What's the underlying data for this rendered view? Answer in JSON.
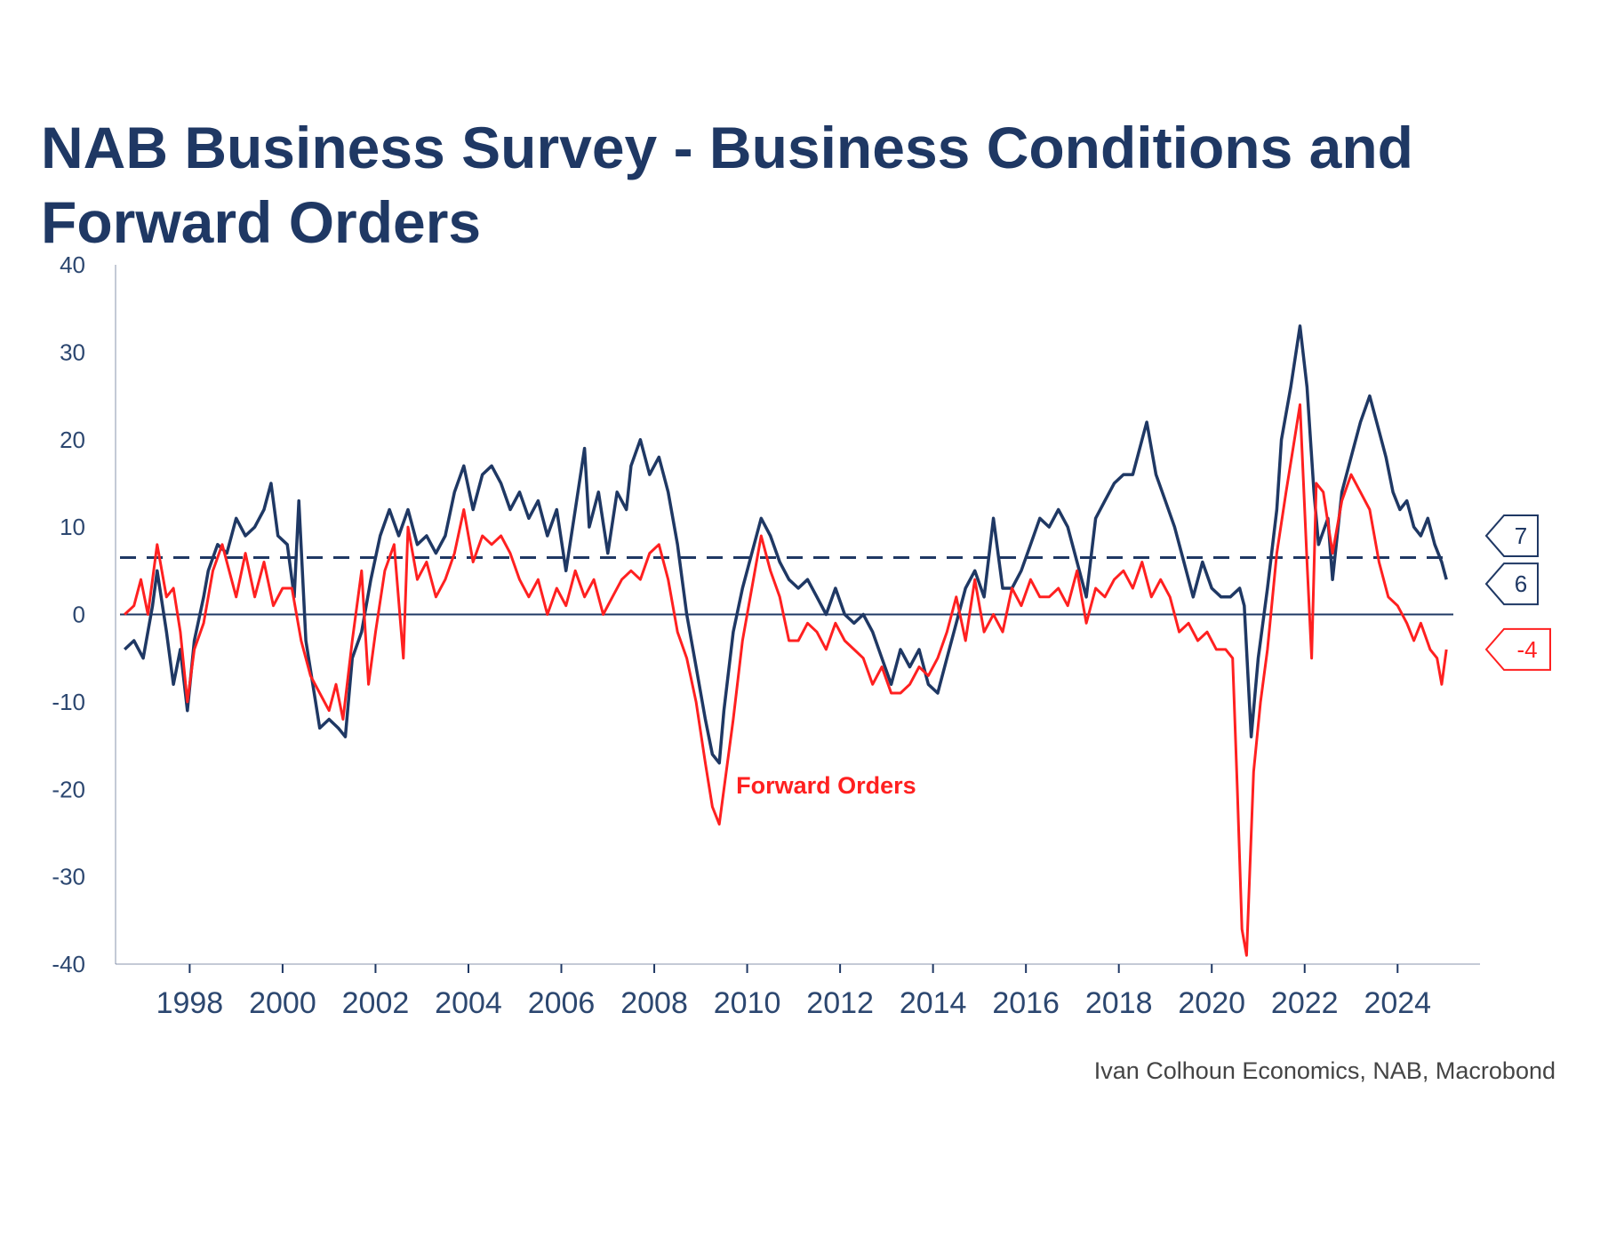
{
  "chart_data": {
    "type": "line",
    "title": "NAB Business Survey - Business Conditions and Forward Orders",
    "source": "Ivan Colhoun Economics, NAB, Macrobond",
    "ylim": [
      -40,
      40
    ],
    "xlim": [
      1997.0,
      2024.75
    ],
    "y_ticks": [
      40,
      30,
      20,
      10,
      0,
      -10,
      -20,
      -30,
      -40
    ],
    "x_ticks": [
      "1998",
      "2000",
      "2002",
      "2004",
      "2006",
      "2008",
      "2010",
      "2012",
      "2014",
      "2016",
      "2018",
      "2020",
      "2022",
      "2024"
    ],
    "colors": {
      "conditions": "#1f3864",
      "forward_orders": "#ff2020",
      "axis": "#1f3864",
      "text": "#2c4770"
    },
    "annotation": {
      "text": "Forward Orders",
      "x": 2012.2,
      "y": -20.5,
      "color": "#ff2020"
    },
    "reference_line": {
      "y": 6.5,
      "style": "dashed",
      "color": "#1f3864"
    },
    "end_labels": [
      {
        "text": "7",
        "y": 9,
        "color": "#1f3864"
      },
      {
        "text": "6",
        "y": 3.5,
        "color": "#1f3864"
      },
      {
        "text": "-4",
        "y": -4,
        "color": "#ff2020"
      }
    ],
    "series": [
      {
        "key": "conditions",
        "points": [
          [
            1997.1,
            -4
          ],
          [
            1997.3,
            -3
          ],
          [
            1997.5,
            -5
          ],
          [
            1997.7,
            1
          ],
          [
            1997.8,
            5
          ],
          [
            1998.0,
            -2
          ],
          [
            1998.15,
            -8
          ],
          [
            1998.3,
            -4
          ],
          [
            1998.45,
            -11
          ],
          [
            1998.6,
            -3
          ],
          [
            1998.8,
            2
          ],
          [
            1998.9,
            5
          ],
          [
            1999.1,
            8
          ],
          [
            1999.3,
            7
          ],
          [
            1999.5,
            11
          ],
          [
            1999.7,
            9
          ],
          [
            1999.9,
            10
          ],
          [
            2000.1,
            12
          ],
          [
            2000.25,
            15
          ],
          [
            2000.4,
            9
          ],
          [
            2000.6,
            8
          ],
          [
            2000.75,
            2
          ],
          [
            2000.85,
            13
          ],
          [
            2001.0,
            -3
          ],
          [
            2001.15,
            -8
          ],
          [
            2001.3,
            -13
          ],
          [
            2001.5,
            -12
          ],
          [
            2001.7,
            -13
          ],
          [
            2001.85,
            -14
          ],
          [
            2002.0,
            -5
          ],
          [
            2002.2,
            -2
          ],
          [
            2002.4,
            4
          ],
          [
            2002.6,
            9
          ],
          [
            2002.8,
            12
          ],
          [
            2003.0,
            9
          ],
          [
            2003.2,
            12
          ],
          [
            2003.4,
            8
          ],
          [
            2003.6,
            9
          ],
          [
            2003.8,
            7
          ],
          [
            2004.0,
            9
          ],
          [
            2004.2,
            14
          ],
          [
            2004.4,
            17
          ],
          [
            2004.6,
            12
          ],
          [
            2004.8,
            16
          ],
          [
            2005.0,
            17
          ],
          [
            2005.2,
            15
          ],
          [
            2005.4,
            12
          ],
          [
            2005.6,
            14
          ],
          [
            2005.8,
            11
          ],
          [
            2006.0,
            13
          ],
          [
            2006.2,
            9
          ],
          [
            2006.4,
            12
          ],
          [
            2006.6,
            5
          ],
          [
            2006.8,
            12
          ],
          [
            2007.0,
            19
          ],
          [
            2007.1,
            10
          ],
          [
            2007.3,
            14
          ],
          [
            2007.5,
            7
          ],
          [
            2007.7,
            14
          ],
          [
            2007.9,
            12
          ],
          [
            2008.0,
            17
          ],
          [
            2008.2,
            20
          ],
          [
            2008.4,
            16
          ],
          [
            2008.6,
            18
          ],
          [
            2008.8,
            14
          ],
          [
            2009.0,
            8
          ],
          [
            2009.2,
            0
          ],
          [
            2009.4,
            -6
          ],
          [
            2009.6,
            -12
          ],
          [
            2009.75,
            -16
          ],
          [
            2009.9,
            -17
          ],
          [
            2010.0,
            -11
          ],
          [
            2010.2,
            -2
          ],
          [
            2010.4,
            3
          ],
          [
            2010.6,
            7
          ],
          [
            2010.8,
            11
          ],
          [
            2011.0,
            9
          ],
          [
            2011.2,
            6
          ],
          [
            2011.4,
            4
          ],
          [
            2011.6,
            3
          ],
          [
            2011.8,
            4
          ],
          [
            2012.0,
            2
          ],
          [
            2012.2,
            0
          ],
          [
            2012.4,
            3
          ],
          [
            2012.6,
            0
          ],
          [
            2012.8,
            -1
          ],
          [
            2013.0,
            0
          ],
          [
            2013.2,
            -2
          ],
          [
            2013.4,
            -5
          ],
          [
            2013.6,
            -8
          ],
          [
            2013.8,
            -4
          ],
          [
            2014.0,
            -6
          ],
          [
            2014.2,
            -4
          ],
          [
            2014.4,
            -8
          ],
          [
            2014.6,
            -9
          ],
          [
            2014.8,
            -5
          ],
          [
            2015.0,
            -1
          ],
          [
            2015.2,
            3
          ],
          [
            2015.4,
            5
          ],
          [
            2015.6,
            2
          ],
          [
            2015.8,
            11
          ],
          [
            2016.0,
            3
          ],
          [
            2016.2,
            3
          ],
          [
            2016.4,
            5
          ],
          [
            2016.6,
            8
          ],
          [
            2016.8,
            11
          ],
          [
            2017.0,
            10
          ],
          [
            2017.2,
            12
          ],
          [
            2017.4,
            10
          ],
          [
            2017.6,
            6
          ],
          [
            2017.8,
            2
          ],
          [
            2018.0,
            11
          ],
          [
            2018.2,
            13
          ],
          [
            2018.4,
            15
          ],
          [
            2018.6,
            16
          ],
          [
            2018.8,
            16
          ],
          [
            2019.0,
            20
          ],
          [
            2019.1,
            22
          ],
          [
            2019.3,
            16
          ],
          [
            2019.5,
            13
          ],
          [
            2019.7,
            10
          ],
          [
            2019.9,
            6
          ],
          [
            2020.1,
            2
          ],
          [
            2020.3,
            6
          ],
          [
            2020.5,
            3
          ],
          [
            2020.7,
            2
          ],
          [
            2020.9,
            2
          ],
          [
            2021.1,
            3
          ],
          [
            2021.2,
            1
          ],
          [
            2021.35,
            -14
          ],
          [
            2021.5,
            -5
          ],
          [
            2021.7,
            3
          ],
          [
            2021.9,
            12
          ],
          [
            2022.0,
            20
          ],
          [
            2022.2,
            26
          ],
          [
            2022.4,
            33
          ],
          [
            2022.55,
            26
          ],
          [
            2022.7,
            14
          ],
          [
            2022.8,
            8
          ],
          [
            2023.0,
            11
          ],
          [
            2023.1,
            4
          ],
          [
            2023.3,
            14
          ],
          [
            2023.5,
            18
          ],
          [
            2023.7,
            22
          ],
          [
            2023.9,
            25
          ],
          [
            2024.1,
            21
          ],
          [
            2024.25,
            18
          ],
          [
            2024.4,
            14
          ],
          [
            2024.55,
            12
          ],
          [
            2024.7,
            13
          ],
          [
            2024.85,
            10
          ],
          [
            2025.0,
            9
          ],
          [
            2025.15,
            11
          ],
          [
            2025.3,
            8
          ],
          [
            2025.45,
            6
          ],
          [
            2025.55,
            4
          ]
        ]
      },
      {
        "key": "forward_orders",
        "points": [
          [
            1997.1,
            0
          ],
          [
            1997.3,
            1
          ],
          [
            1997.45,
            4
          ],
          [
            1997.6,
            0
          ],
          [
            1997.8,
            8
          ],
          [
            1998.0,
            2
          ],
          [
            1998.15,
            3
          ],
          [
            1998.3,
            -2
          ],
          [
            1998.45,
            -10
          ],
          [
            1998.6,
            -4
          ],
          [
            1998.8,
            -1
          ],
          [
            1999.0,
            5
          ],
          [
            1999.2,
            8
          ],
          [
            1999.35,
            5
          ],
          [
            1999.5,
            2
          ],
          [
            1999.7,
            7
          ],
          [
            1999.9,
            2
          ],
          [
            2000.1,
            6
          ],
          [
            2000.3,
            1
          ],
          [
            2000.5,
            3
          ],
          [
            2000.7,
            3
          ],
          [
            2000.9,
            -3
          ],
          [
            2001.1,
            -7
          ],
          [
            2001.3,
            -9
          ],
          [
            2001.5,
            -11
          ],
          [
            2001.65,
            -8
          ],
          [
            2001.8,
            -12
          ],
          [
            2002.0,
            -3
          ],
          [
            2002.2,
            5
          ],
          [
            2002.35,
            -8
          ],
          [
            2002.5,
            -2
          ],
          [
            2002.7,
            5
          ],
          [
            2002.9,
            8
          ],
          [
            2003.1,
            -5
          ],
          [
            2003.2,
            10
          ],
          [
            2003.4,
            4
          ],
          [
            2003.6,
            6
          ],
          [
            2003.8,
            2
          ],
          [
            2004.0,
            4
          ],
          [
            2004.2,
            7
          ],
          [
            2004.4,
            12
          ],
          [
            2004.6,
            6
          ],
          [
            2004.8,
            9
          ],
          [
            2005.0,
            8
          ],
          [
            2005.2,
            9
          ],
          [
            2005.4,
            7
          ],
          [
            2005.6,
            4
          ],
          [
            2005.8,
            2
          ],
          [
            2006.0,
            4
          ],
          [
            2006.2,
            0
          ],
          [
            2006.4,
            3
          ],
          [
            2006.6,
            1
          ],
          [
            2006.8,
            5
          ],
          [
            2007.0,
            2
          ],
          [
            2007.2,
            4
          ],
          [
            2007.4,
            0
          ],
          [
            2007.6,
            2
          ],
          [
            2007.8,
            4
          ],
          [
            2008.0,
            5
          ],
          [
            2008.2,
            4
          ],
          [
            2008.4,
            7
          ],
          [
            2008.6,
            8
          ],
          [
            2008.8,
            4
          ],
          [
            2009.0,
            -2
          ],
          [
            2009.2,
            -5
          ],
          [
            2009.4,
            -10
          ],
          [
            2009.6,
            -17
          ],
          [
            2009.75,
            -22
          ],
          [
            2009.9,
            -24
          ],
          [
            2010.0,
            -20
          ],
          [
            2010.2,
            -12
          ],
          [
            2010.4,
            -3
          ],
          [
            2010.6,
            3
          ],
          [
            2010.8,
            9
          ],
          [
            2011.0,
            5
          ],
          [
            2011.2,
            2
          ],
          [
            2011.4,
            -3
          ],
          [
            2011.6,
            -3
          ],
          [
            2011.8,
            -1
          ],
          [
            2012.0,
            -2
          ],
          [
            2012.2,
            -4
          ],
          [
            2012.4,
            -1
          ],
          [
            2012.6,
            -3
          ],
          [
            2012.8,
            -4
          ],
          [
            2013.0,
            -5
          ],
          [
            2013.2,
            -8
          ],
          [
            2013.4,
            -6
          ],
          [
            2013.6,
            -9
          ],
          [
            2013.8,
            -9
          ],
          [
            2014.0,
            -8
          ],
          [
            2014.2,
            -6
          ],
          [
            2014.4,
            -7
          ],
          [
            2014.6,
            -5
          ],
          [
            2014.8,
            -2
          ],
          [
            2015.0,
            2
          ],
          [
            2015.2,
            -3
          ],
          [
            2015.4,
            4
          ],
          [
            2015.6,
            -2
          ],
          [
            2015.8,
            0
          ],
          [
            2016.0,
            -2
          ],
          [
            2016.2,
            3
          ],
          [
            2016.4,
            1
          ],
          [
            2016.6,
            4
          ],
          [
            2016.8,
            2
          ],
          [
            2017.0,
            2
          ],
          [
            2017.2,
            3
          ],
          [
            2017.4,
            1
          ],
          [
            2017.6,
            5
          ],
          [
            2017.8,
            -1
          ],
          [
            2018.0,
            3
          ],
          [
            2018.2,
            2
          ],
          [
            2018.4,
            4
          ],
          [
            2018.6,
            5
          ],
          [
            2018.8,
            3
          ],
          [
            2019.0,
            6
          ],
          [
            2019.2,
            2
          ],
          [
            2019.4,
            4
          ],
          [
            2019.6,
            2
          ],
          [
            2019.8,
            -2
          ],
          [
            2020.0,
            -1
          ],
          [
            2020.2,
            -3
          ],
          [
            2020.4,
            -2
          ],
          [
            2020.6,
            -4
          ],
          [
            2020.8,
            -4
          ],
          [
            2020.95,
            -5
          ],
          [
            2021.05,
            -20
          ],
          [
            2021.15,
            -36
          ],
          [
            2021.25,
            -39
          ],
          [
            2021.4,
            -18
          ],
          [
            2021.55,
            -10
          ],
          [
            2021.7,
            -4
          ],
          [
            2021.9,
            7
          ],
          [
            2022.1,
            14
          ],
          [
            2022.25,
            19
          ],
          [
            2022.4,
            24
          ],
          [
            2022.55,
            6
          ],
          [
            2022.65,
            -5
          ],
          [
            2022.75,
            15
          ],
          [
            2022.9,
            14
          ],
          [
            2023.1,
            7
          ],
          [
            2023.3,
            13
          ],
          [
            2023.5,
            16
          ],
          [
            2023.7,
            14
          ],
          [
            2023.9,
            12
          ],
          [
            2024.1,
            6
          ],
          [
            2024.3,
            2
          ],
          [
            2024.5,
            1
          ],
          [
            2024.7,
            -1
          ],
          [
            2024.85,
            -3
          ],
          [
            2025.0,
            -1
          ],
          [
            2025.2,
            -4
          ],
          [
            2025.35,
            -5
          ],
          [
            2025.45,
            -8
          ],
          [
            2025.55,
            -4
          ]
        ]
      }
    ]
  }
}
